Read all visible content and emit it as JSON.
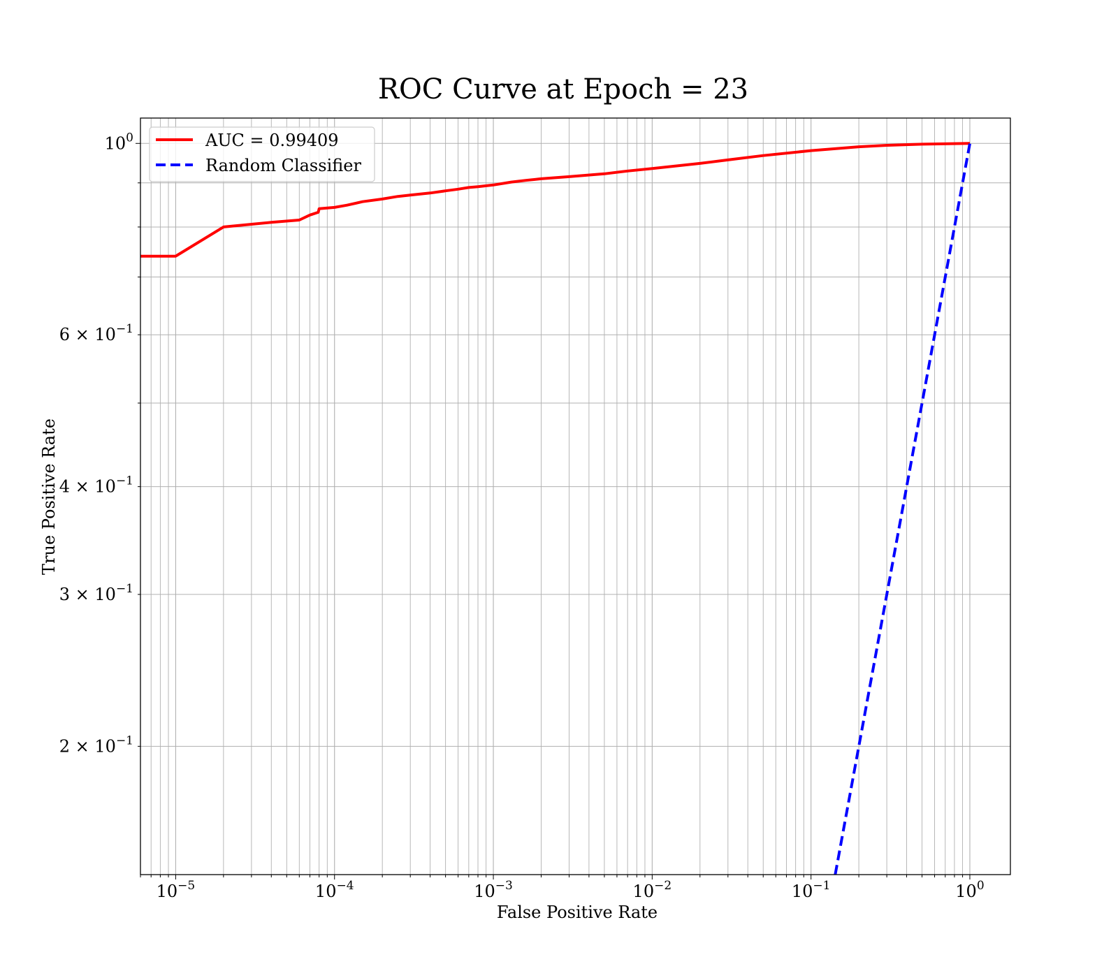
{
  "chart_data": {
    "type": "line",
    "title": "ROC Curve at Epoch = 23",
    "xlabel": "False Positive Rate",
    "ylabel": "True Positive Rate",
    "xscale": "log",
    "yscale": "log",
    "xlim": [
      6e-06,
      1.8
    ],
    "ylim": [
      0.142,
      1.07
    ],
    "grid": true,
    "grid_minor": true,
    "legend_position": "upper-left",
    "x_ticks": [
      {
        "value": 1e-05,
        "base": "10",
        "exp": "−5"
      },
      {
        "value": 0.0001,
        "base": "10",
        "exp": "−4"
      },
      {
        "value": 0.001,
        "base": "10",
        "exp": "−3"
      },
      {
        "value": 0.01,
        "base": "10",
        "exp": "−2"
      },
      {
        "value": 0.1,
        "base": "10",
        "exp": "−1"
      },
      {
        "value": 1,
        "base": "10",
        "exp": "0"
      }
    ],
    "y_ticks": [
      {
        "value": 1.0,
        "base": "10",
        "exp": "0"
      },
      {
        "value": 0.6,
        "base": "6 × 10",
        "exp": "−1"
      },
      {
        "value": 0.4,
        "base": "4 × 10",
        "exp": "−1"
      },
      {
        "value": 0.3,
        "base": "3 × 10",
        "exp": "−1"
      },
      {
        "value": 0.2,
        "base": "2 × 10",
        "exp": "−1"
      }
    ],
    "series": [
      {
        "name": "AUC = 0.99409",
        "color": "#ff0000",
        "style": "solid",
        "x": [
          6e-06,
          1e-05,
          2e-05,
          4e-05,
          6e-05,
          7e-05,
          7.9e-05,
          8e-05,
          0.0001,
          0.00012,
          0.00015,
          0.0002,
          0.00025,
          0.0003,
          0.0004,
          0.0005,
          0.0006,
          0.0007,
          0.0008,
          0.001,
          0.0013,
          0.0016,
          0.002,
          0.003,
          0.005,
          0.007,
          0.01,
          0.02,
          0.03,
          0.05,
          0.1,
          0.2,
          0.3,
          0.5,
          1
        ],
        "y": [
          0.74,
          0.74,
          0.8,
          0.81,
          0.815,
          0.826,
          0.832,
          0.84,
          0.843,
          0.848,
          0.856,
          0.862,
          0.868,
          0.871,
          0.876,
          0.881,
          0.885,
          0.889,
          0.891,
          0.895,
          0.902,
          0.906,
          0.91,
          0.915,
          0.922,
          0.929,
          0.935,
          0.948,
          0.957,
          0.968,
          0.981,
          0.991,
          0.995,
          0.998,
          1.0
        ]
      },
      {
        "name": "Random Classifier",
        "color": "#0000ff",
        "style": "dashed",
        "x": [
          0.142,
          1
        ],
        "y": [
          0.142,
          1
        ]
      }
    ]
  }
}
